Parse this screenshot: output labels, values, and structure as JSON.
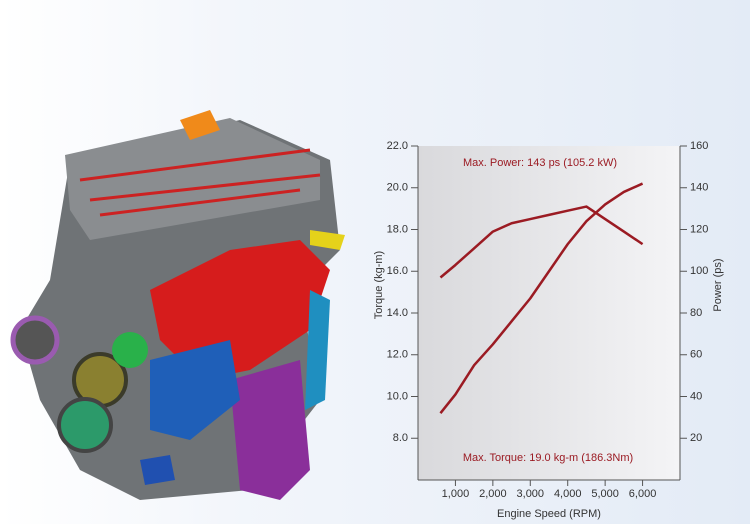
{
  "chart_data": {
    "type": "line",
    "annotations": [
      "Max. Power: 143 ps (105.2 kW)",
      "Max. Torque: 19.0 kg-m (186.3Nm)"
    ],
    "x_label": "Engine Speed (RPM)",
    "y_label": "Torque (kg-m)",
    "y2_label": "Power (ps)",
    "x": [
      600,
      1000,
      1500,
      2000,
      2500,
      3000,
      3500,
      4000,
      4500,
      5000,
      5500,
      6000
    ],
    "series": [
      {
        "color": "#9b1b23",
        "axis": "y",
        "values": [
          15.7,
          16.3,
          17.1,
          17.9,
          18.3,
          18.5,
          18.7,
          18.9,
          19.1,
          18.5,
          17.9,
          17.3
        ]
      },
      {
        "color": "#9b1b23",
        "axis": "y2",
        "values": [
          32,
          41,
          55,
          65,
          76,
          87,
          100,
          113,
          124,
          132,
          138,
          142
        ]
      }
    ],
    "xlim": [
      0,
      7000
    ],
    "xticks": [
      {
        "value": 1000,
        "label": "1,000"
      },
      {
        "value": 2000,
        "label": "2,000"
      },
      {
        "value": 3000,
        "label": "3,000"
      },
      {
        "value": 4000,
        "label": "4,000"
      },
      {
        "value": 5000,
        "label": "5,000"
      },
      {
        "value": 6000,
        "label": "6,000"
      }
    ],
    "ylim": [
      6,
      22
    ],
    "yticks": [
      {
        "value": 8,
        "label": "8.0"
      },
      {
        "value": 10,
        "label": "10.0"
      },
      {
        "value": 12,
        "label": "12.0"
      },
      {
        "value": 14,
        "label": "14.0"
      },
      {
        "value": 16,
        "label": "16.0"
      },
      {
        "value": 18,
        "label": "18.0"
      },
      {
        "value": 20,
        "label": "20.0"
      },
      {
        "value": 22,
        "label": "22.0"
      }
    ],
    "y2lim": [
      0,
      160
    ],
    "y2ticks": [
      20,
      40,
      60,
      80,
      100,
      120,
      140,
      160
    ],
    "grid": false
  }
}
